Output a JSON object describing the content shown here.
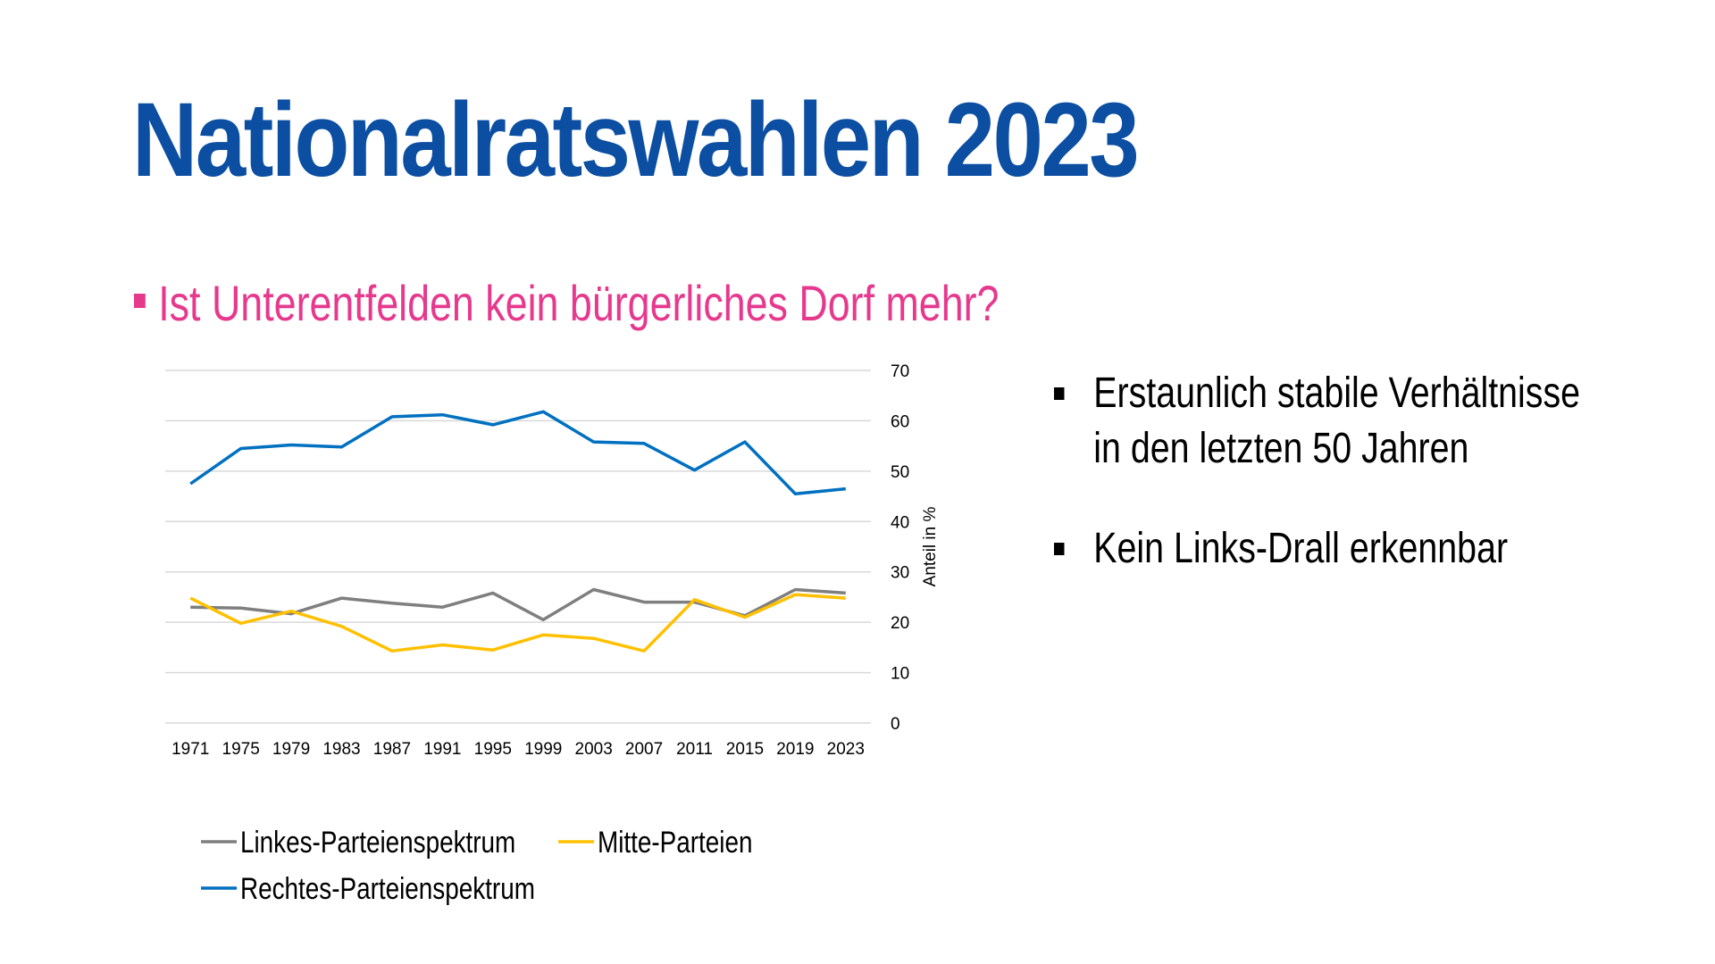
{
  "slide": {
    "title": "Nationalratswahlen 2023",
    "subtitle": "Ist Unterentfelden kein bürgerliches Dorf mehr?",
    "bullets": [
      "Erstaunlich stabile Verhältnisse\nin den letzten 50 Jahren",
      "Kein Links-Drall erkennbar"
    ],
    "colors": {
      "title": "#0B4EA2",
      "subtitle": "#E6398E"
    }
  },
  "chart_data": {
    "type": "line",
    "title": "",
    "xlabel": "",
    "ylabel": "Anteil in %",
    "ylim": [
      0,
      70
    ],
    "yticks": [
      0,
      10,
      20,
      30,
      40,
      50,
      60,
      70
    ],
    "y_axis_side": "right",
    "grid": true,
    "legend_position": "bottom",
    "categories": [
      "1971",
      "1975",
      "1979",
      "1983",
      "1987",
      "1991",
      "1995",
      "1999",
      "2003",
      "2007",
      "2011",
      "2015",
      "2019",
      "2023"
    ],
    "series": [
      {
        "name": "Linkes-Parteienspektrum",
        "color": "#7F7F7F",
        "values": [
          23,
          22.8,
          21.7,
          24.8,
          23.8,
          23,
          25.8,
          20.5,
          26.5,
          24,
          24,
          21.3,
          26.5,
          25.8
        ]
      },
      {
        "name": "Mitte-Parteien",
        "color": "#FFC000",
        "values": [
          24.8,
          19.8,
          22.2,
          19.2,
          14.3,
          15.5,
          14.5,
          17.5,
          16.8,
          14.3,
          24.5,
          21,
          25.5,
          24.8
        ]
      },
      {
        "name": "Rechtes-Parteienspektrum",
        "color": "#0070C0",
        "values": [
          47.5,
          54.5,
          55.2,
          54.8,
          60.8,
          61.2,
          59.2,
          61.8,
          55.8,
          55.5,
          50.2,
          55.8,
          45.5,
          46.5
        ]
      }
    ]
  }
}
